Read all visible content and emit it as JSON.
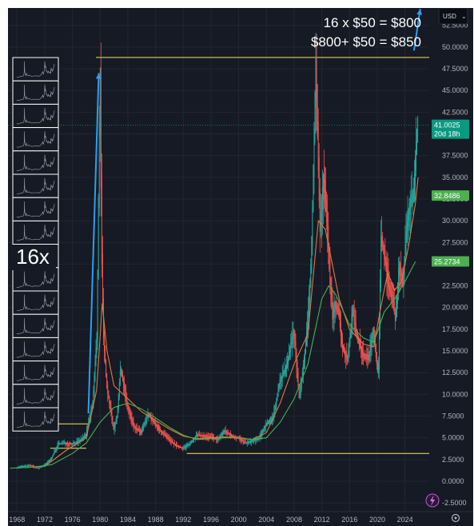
{
  "currency": "USD",
  "chart_data": {
    "type": "line",
    "title": "",
    "xlabel": "",
    "ylabel": "",
    "x_ticks": [
      "1968",
      "1972",
      "1976",
      "1980",
      "1984",
      "1988",
      "1992",
      "1996",
      "2000",
      "2004",
      "2008",
      "2012",
      "2016",
      "2020",
      "2024"
    ],
    "y_ticks": [
      "52.5000",
      "50.0000",
      "47.5000",
      "45.0000",
      "42.5000",
      "40.0000",
      "37.5000",
      "35.0000",
      "32.5000",
      "30.0000",
      "27.5000",
      "25.0000",
      "22.5000",
      "20.0000",
      "17.5000",
      "15.0000",
      "12.5000",
      "10.0000",
      "7.5000",
      "5.0000",
      "2.5000",
      "0.0000",
      "-2.5000"
    ],
    "ylim": [
      -3.5,
      54.5
    ],
    "xlim": [
      1966.7,
      2027.5
    ],
    "series": [
      {
        "color": "#c44a4a",
        "points": [
          [
            1968,
            1.6
          ],
          [
            1970,
            1.8
          ],
          [
            1971,
            1.5
          ],
          [
            1972,
            1.8
          ],
          [
            1973,
            2.6
          ],
          [
            1974,
            4.3
          ],
          [
            1975,
            4.4
          ],
          [
            1976,
            4.3
          ],
          [
            1977,
            4.6
          ],
          [
            1978,
            5.3
          ],
          [
            1979,
            9.0
          ],
          [
            1979.6,
            17.0
          ],
          [
            1980.05,
            48.0
          ],
          [
            1980.25,
            28.0
          ],
          [
            1980.5,
            17.5
          ],
          [
            1981,
            11.0
          ],
          [
            1981.5,
            8.5
          ],
          [
            1982,
            6.0
          ],
          [
            1982.5,
            7.5
          ],
          [
            1983,
            13.0
          ],
          [
            1983.5,
            11.0
          ],
          [
            1984,
            8.5
          ],
          [
            1985,
            6.2
          ],
          [
            1986,
            5.6
          ],
          [
            1987,
            7.8
          ],
          [
            1988,
            6.5
          ],
          [
            1989,
            5.6
          ],
          [
            1990,
            4.8
          ],
          [
            1991,
            4.1
          ],
          [
            1992,
            3.8
          ],
          [
            1993,
            4.3
          ],
          [
            1994,
            5.3
          ],
          [
            1995,
            5.2
          ],
          [
            1996,
            5.1
          ],
          [
            1997,
            4.8
          ],
          [
            1998,
            5.8
          ],
          [
            1999,
            5.2
          ],
          [
            2000,
            5.0
          ],
          [
            2001,
            4.4
          ],
          [
            2002,
            4.6
          ],
          [
            2003,
            4.9
          ],
          [
            2004,
            6.6
          ],
          [
            2005,
            7.3
          ],
          [
            2006,
            11.5
          ],
          [
            2007,
            13.3
          ],
          [
            2008,
            17.5
          ],
          [
            2008.8,
            9.5
          ],
          [
            2009.5,
            14.0
          ],
          [
            2010,
            18.0
          ],
          [
            2010.5,
            25.0
          ],
          [
            2011.2,
            48.5
          ],
          [
            2011.5,
            38.0
          ],
          [
            2011.8,
            29.0
          ],
          [
            2012.3,
            35.0
          ],
          [
            2012.8,
            30.0
          ],
          [
            2013.3,
            22.0
          ],
          [
            2013.6,
            19.0
          ],
          [
            2014,
            20.5
          ],
          [
            2014.5,
            19.5
          ],
          [
            2015,
            15.5
          ],
          [
            2015.8,
            14.0
          ],
          [
            2016.5,
            20.0
          ],
          [
            2017,
            17.0
          ],
          [
            2018,
            14.5
          ],
          [
            2018.8,
            14.2
          ],
          [
            2019.5,
            17.5
          ],
          [
            2020.2,
            12.0
          ],
          [
            2020.6,
            28.0
          ],
          [
            2021,
            26.5
          ],
          [
            2021.6,
            23.0
          ],
          [
            2022.3,
            21.0
          ],
          [
            2022.7,
            18.5
          ],
          [
            2023.2,
            25.0
          ],
          [
            2023.7,
            22.5
          ],
          [
            2024.3,
            29.0
          ],
          [
            2024.8,
            32.0
          ],
          [
            2025.3,
            33.0
          ],
          [
            2025.7,
            39.0
          ],
          [
            2025.9,
            41.0
          ]
        ]
      },
      {
        "color": "#e07a3e",
        "points": [
          [
            1972,
            1.7
          ],
          [
            1975,
            3.5
          ],
          [
            1978,
            5.0
          ],
          [
            1979.5,
            10.5
          ],
          [
            1980.3,
            20.5
          ],
          [
            1981,
            15.0
          ],
          [
            1982,
            11.0
          ],
          [
            1984,
            9.5
          ],
          [
            1986,
            8.0
          ],
          [
            1988,
            7.0
          ],
          [
            1990,
            6.0
          ],
          [
            1992,
            5.2
          ],
          [
            1994,
            4.9
          ],
          [
            1996,
            5.0
          ],
          [
            1998,
            5.1
          ],
          [
            2000,
            5.0
          ],
          [
            2002,
            4.8
          ],
          [
            2004,
            5.6
          ],
          [
            2006,
            9.0
          ],
          [
            2008,
            13.5
          ],
          [
            2010,
            17.0
          ],
          [
            2011.5,
            30.0
          ],
          [
            2012.5,
            29.0
          ],
          [
            2013.5,
            25.0
          ],
          [
            2014.5,
            21.0
          ],
          [
            2016,
            17.5
          ],
          [
            2018,
            15.8
          ],
          [
            2019.5,
            15.5
          ],
          [
            2020.5,
            20.0
          ],
          [
            2021.5,
            24.0
          ],
          [
            2022.5,
            22.0
          ],
          [
            2023.5,
            23.0
          ],
          [
            2024.5,
            27.0
          ],
          [
            2025.5,
            32.0
          ],
          [
            2025.9,
            35.0
          ]
        ]
      },
      {
        "color": "#4caf50",
        "points": [
          [
            1967,
            1.5
          ],
          [
            1970,
            1.6
          ],
          [
            1973,
            1.9
          ],
          [
            1976,
            3.2
          ],
          [
            1978,
            4.4
          ],
          [
            1980,
            6.8
          ],
          [
            1982,
            8.5
          ],
          [
            1984,
            9.0
          ],
          [
            1986,
            8.3
          ],
          [
            1988,
            7.3
          ],
          [
            1990,
            6.2
          ],
          [
            1992,
            5.3
          ],
          [
            1994,
            4.8
          ],
          [
            1996,
            4.9
          ],
          [
            1998,
            5.0
          ],
          [
            2000,
            5.0
          ],
          [
            2002,
            4.8
          ],
          [
            2004,
            5.0
          ],
          [
            2006,
            6.8
          ],
          [
            2008,
            9.5
          ],
          [
            2010,
            13.5
          ],
          [
            2012,
            21.0
          ],
          [
            2013,
            22.5
          ],
          [
            2014,
            21.5
          ],
          [
            2016,
            18.0
          ],
          [
            2018,
            16.5
          ],
          [
            2019.5,
            16.0
          ],
          [
            2021,
            19.5
          ],
          [
            2022.5,
            21.0
          ],
          [
            2024,
            23.0
          ],
          [
            2025.5,
            25.3
          ]
        ]
      }
    ],
    "horizontal_lines": [
      {
        "y": 48.8,
        "x_from": 1979.4,
        "x_to": 2027.5,
        "color": "#f5e663"
      },
      {
        "y": 6.6,
        "x_from": 1972.8,
        "x_to": 1978.5,
        "color": "#f5e663"
      },
      {
        "y": 3.8,
        "x_from": 1972.8,
        "x_to": 1978.0,
        "color": "#f5e663"
      },
      {
        "y": 3.2,
        "x_from": 1992.5,
        "x_to": 2027.5,
        "color": "#f5e663"
      }
    ],
    "arrows": [
      {
        "from": [
          1978.3,
          7.8
        ],
        "to": [
          1979.8,
          47.0
        ],
        "color": "#2a9ff5"
      },
      {
        "from": [
          2025.3,
          49.6
        ],
        "to": [
          2026.2,
          54.4
        ],
        "color": "#2a9ff5"
      }
    ],
    "price_labels": [
      {
        "value": "41.0025",
        "sub": "20d 18h",
        "y": 41.0025,
        "color": "#089981"
      },
      {
        "value": "32.8486",
        "y": 32.8486,
        "color": "#4caf50"
      },
      {
        "value": "25.2734",
        "y": 25.2734,
        "color": "#4caf50"
      }
    ],
    "annotations": [
      "16 x $50 = $800",
      "$800+ $50  = $850",
      "16x"
    ]
  }
}
